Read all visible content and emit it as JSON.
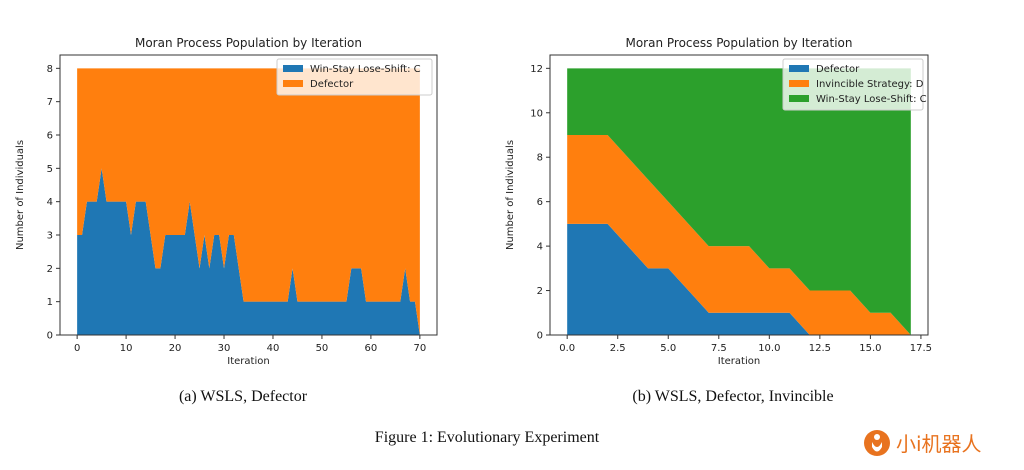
{
  "chart_data": [
    {
      "type": "area",
      "stacked": true,
      "title": "Moran Process Population by Iteration",
      "xlabel": "Iteration",
      "ylabel": "Number of Individuals",
      "xlim": [
        -3.5,
        73.5
      ],
      "ylim": [
        0,
        8.4
      ],
      "xticks": [
        0,
        10,
        20,
        30,
        40,
        50,
        60,
        70
      ],
      "yticks": [
        0,
        1,
        2,
        3,
        4,
        5,
        6,
        7,
        8
      ],
      "legend": "top-right",
      "grid": false,
      "x_start": 0,
      "series": [
        {
          "name": "Win-Stay Lose-Shift: C",
          "color": "#1f77b4",
          "values": [
            3,
            3,
            4,
            4,
            4,
            5,
            4,
            4,
            4,
            4,
            4,
            3,
            4,
            4,
            4,
            3,
            2,
            2,
            3,
            3,
            3,
            3,
            3,
            4,
            3,
            2,
            3,
            2,
            3,
            3,
            2,
            3,
            3,
            2,
            1,
            1,
            1,
            1,
            1,
            1,
            1,
            1,
            1,
            1,
            2,
            1,
            1,
            1,
            1,
            1,
            1,
            1,
            1,
            1,
            1,
            1,
            2,
            2,
            2,
            1,
            1,
            1,
            1,
            1,
            1,
            1,
            1,
            2,
            1,
            1,
            0
          ]
        },
        {
          "name": "Defector",
          "color": "#ff7f0e",
          "values": [
            5,
            5,
            4,
            4,
            4,
            3,
            4,
            4,
            4,
            4,
            4,
            5,
            4,
            4,
            4,
            5,
            6,
            6,
            5,
            5,
            5,
            5,
            5,
            4,
            5,
            6,
            5,
            6,
            5,
            5,
            6,
            5,
            5,
            6,
            7,
            7,
            7,
            7,
            7,
            7,
            7,
            7,
            7,
            7,
            6,
            7,
            7,
            7,
            7,
            7,
            7,
            7,
            7,
            7,
            7,
            7,
            6,
            6,
            6,
            7,
            7,
            7,
            7,
            7,
            7,
            7,
            7,
            6,
            7,
            7,
            8
          ]
        }
      ],
      "caption": "(a) WSLS, Defector"
    },
    {
      "type": "area",
      "stacked": true,
      "title": "Moran Process Population by Iteration",
      "xlabel": "Iteration",
      "ylabel": "Number of Individuals",
      "xlim": [
        -0.85,
        17.85
      ],
      "ylim": [
        0,
        12.6
      ],
      "xticks": [
        "0.0",
        "2.5",
        "5.0",
        "7.5",
        "10.0",
        "12.5",
        "15.0",
        "17.5"
      ],
      "yticks": [
        0,
        2,
        4,
        6,
        8,
        10,
        12
      ],
      "legend": "top-right",
      "grid": false,
      "x_start": 0,
      "series": [
        {
          "name": "Defector",
          "color": "#1f77b4",
          "values": [
            5,
            5,
            5,
            4,
            3,
            3,
            2,
            1,
            1,
            1,
            1,
            1,
            0,
            0,
            0,
            0,
            0,
            0
          ]
        },
        {
          "name": "Invincible Strategy: D",
          "color": "#ff7f0e",
          "values": [
            4,
            4,
            4,
            4,
            4,
            3,
            3,
            3,
            3,
            3,
            2,
            2,
            2,
            2,
            2,
            1,
            1,
            0
          ]
        },
        {
          "name": "Win-Stay Lose-Shift: C",
          "color": "#2ca02c",
          "values": [
            3,
            3,
            3,
            4,
            5,
            6,
            7,
            8,
            8,
            8,
            9,
            9,
            10,
            10,
            10,
            11,
            11,
            12
          ]
        }
      ],
      "caption": "(b) WSLS, Defector, Invincible"
    }
  ],
  "figure_caption": "Figure 1: Evolutionary Experiment",
  "watermark": "小i机器人"
}
